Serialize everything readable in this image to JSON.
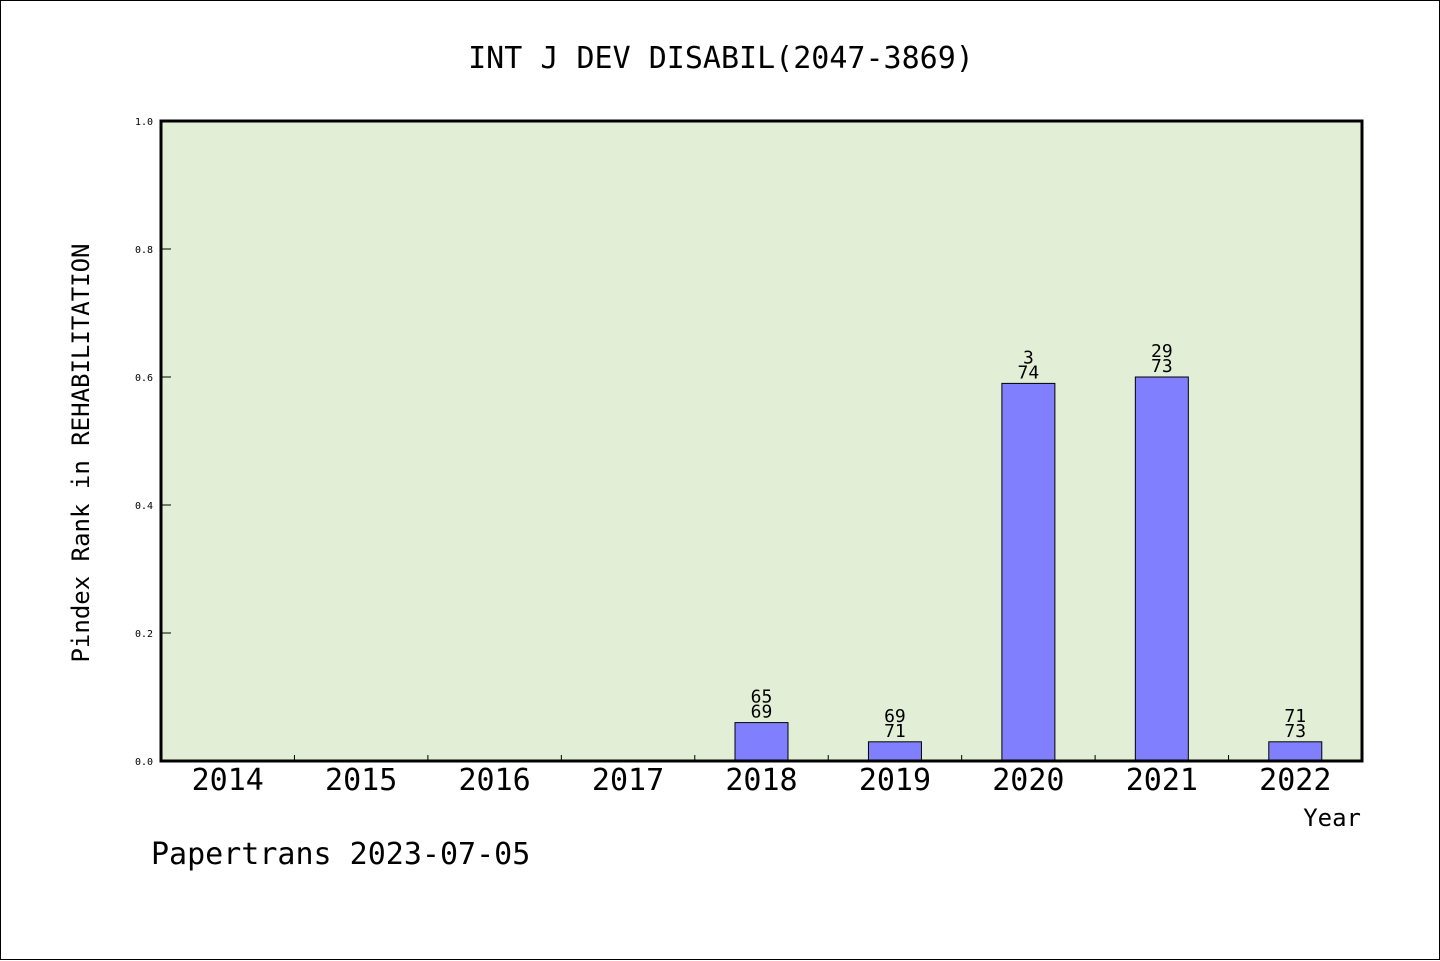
{
  "chart_data": {
    "type": "bar",
    "title": "INT J DEV DISABIL(2047-3869)",
    "xlabel": "Year",
    "ylabel": "Pindex Rank in REHABILITATION",
    "ylim": [
      0,
      1.0
    ],
    "yticks": [
      "0.0",
      "0.2",
      "0.4",
      "0.6",
      "0.8",
      "1.0"
    ],
    "categories": [
      "2014",
      "2015",
      "2016",
      "2017",
      "2018",
      "2019",
      "2020",
      "2021",
      "2022"
    ],
    "values": [
      0,
      0,
      0,
      0,
      0.06,
      0.03,
      0.59,
      0.6,
      0.03
    ],
    "bar_labels": [
      null,
      null,
      null,
      null,
      {
        "top": "65",
        "bottom": "69"
      },
      {
        "top": "69",
        "bottom": "71"
      },
      {
        "top": "3",
        "bottom": "74"
      },
      {
        "top": "29",
        "bottom": "73"
      },
      {
        "top": "71",
        "bottom": "73"
      }
    ],
    "grid": false,
    "colors": {
      "plot_bg": "#e2efd6",
      "bar": "#8080ff",
      "bar_stroke": "#000000"
    }
  },
  "footer": "Papertrans 2023-07-05"
}
